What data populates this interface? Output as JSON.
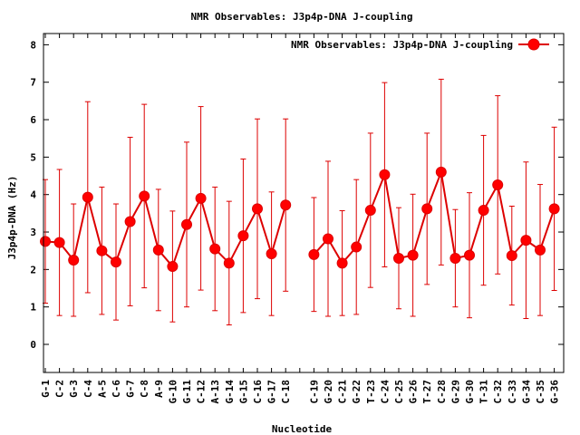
{
  "chart_data": {
    "type": "line",
    "title": "NMR Observables: J3p4p-DNA J-coupling",
    "xlabel": "Nucleotide",
    "ylabel": "J3p4p-DNA (Hz)",
    "ylim": [
      -0.75,
      8.3
    ],
    "yticks": [
      0,
      1,
      2,
      3,
      4,
      5,
      6,
      7,
      8
    ],
    "legend": {
      "label": "NMR Observables: J3p4p-DNA J-coupling",
      "placement": "top-right"
    },
    "series_color": "#dd0000",
    "categories": [
      "G-1",
      "C-2",
      "G-3",
      "C-4",
      "A-5",
      "C-6",
      "G-7",
      "C-8",
      "A-9",
      "G-10",
      "G-11",
      "C-12",
      "A-13",
      "G-14",
      "G-15",
      "C-16",
      "G-17",
      "C-18",
      "",
      "C-19",
      "G-20",
      "C-21",
      "G-22",
      "T-23",
      "C-24",
      "C-25",
      "G-26",
      "T-27",
      "C-28",
      "G-29",
      "G-30",
      "T-31",
      "C-32",
      "C-33",
      "G-34",
      "C-35",
      "G-36"
    ],
    "values": [
      2.75,
      2.72,
      2.25,
      3.93,
      2.5,
      2.2,
      3.28,
      3.96,
      2.52,
      2.08,
      3.2,
      3.9,
      2.55,
      2.17,
      2.9,
      3.62,
      2.42,
      3.72,
      null,
      2.4,
      2.82,
      2.17,
      2.6,
      3.58,
      4.53,
      2.3,
      2.38,
      3.62,
      4.6,
      2.3,
      2.38,
      3.58,
      4.26,
      2.37,
      2.78,
      2.52,
      3.62
    ],
    "errors": [
      1.65,
      1.95,
      1.5,
      2.55,
      1.7,
      1.55,
      2.25,
      2.45,
      1.62,
      1.48,
      2.2,
      2.45,
      1.65,
      1.65,
      2.05,
      2.4,
      1.65,
      2.3,
      null,
      1.52,
      2.07,
      1.4,
      1.8,
      2.06,
      2.46,
      1.35,
      1.63,
      2.02,
      2.48,
      1.3,
      1.67,
      2.0,
      2.38,
      1.32,
      2.09,
      1.75,
      2.18
    ]
  }
}
